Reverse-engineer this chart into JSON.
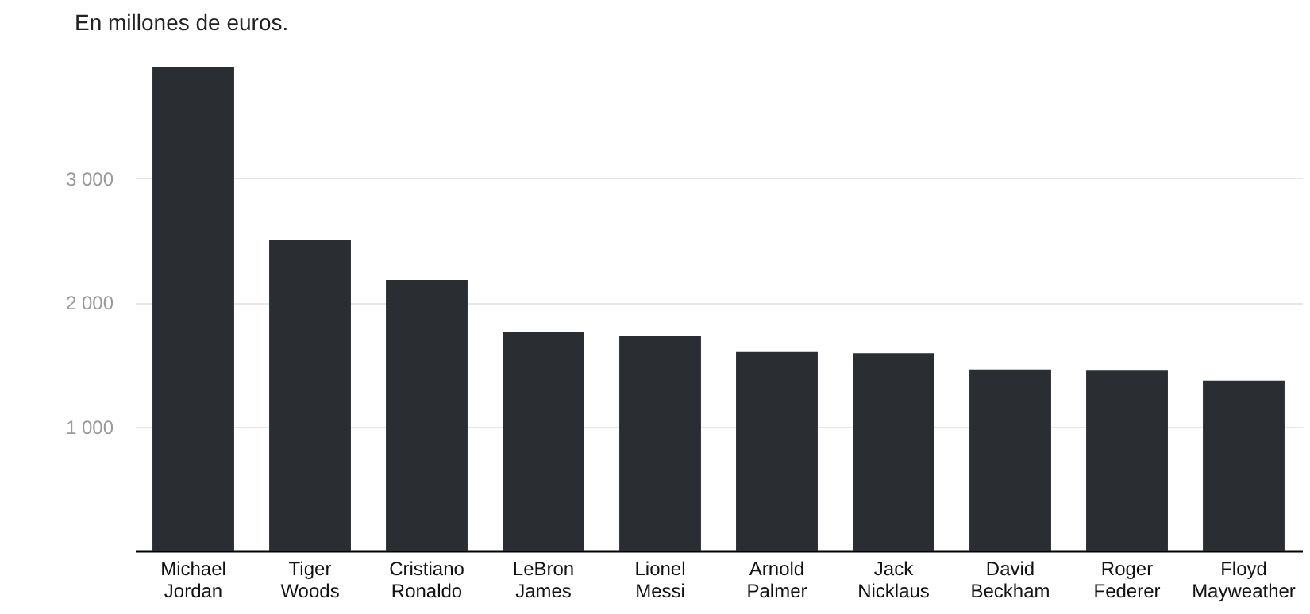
{
  "chart_data": {
    "type": "bar",
    "title": "En millones de euros.",
    "categories": [
      "Michael Jordan",
      "Tiger Woods",
      "Cristiano Ronaldo",
      "LeBron James",
      "Lionel Messi",
      "Arnold Palmer",
      "Jack Nicklaus",
      "David Beckham",
      "Roger Federer",
      "Floyd Mayweather"
    ],
    "values": [
      3900,
      2500,
      2180,
      1760,
      1730,
      1600,
      1590,
      1460,
      1450,
      1370
    ],
    "color": "#2a2e32",
    "ylim": [
      0,
      3900
    ],
    "yticks": [
      {
        "value": 1000,
        "label": "1 000"
      },
      {
        "value": 2000,
        "label": "2 000"
      },
      {
        "value": 3000,
        "label": "3 000"
      }
    ],
    "grid": "y"
  }
}
